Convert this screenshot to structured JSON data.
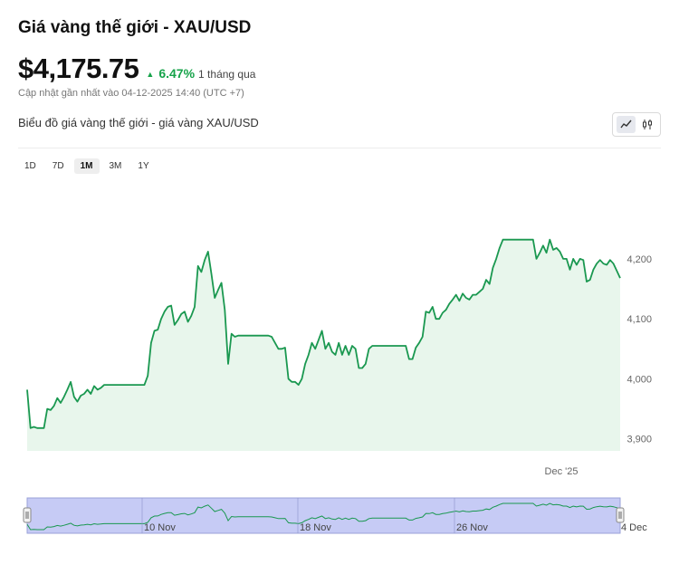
{
  "header": {
    "title": "Giá vàng thế giới - XAU/USD",
    "price": "$4,175.75",
    "change_pct": "6.47%",
    "change_period": "1 tháng qua",
    "updated": "Cập nhật gần nhất vào 04-12-2025 14:40 (UTC +7)",
    "chart_title": "Biểu đồ giá vàng thế giới - giá vàng XAU/USD"
  },
  "colors": {
    "accent": "#16a34a",
    "line": "#1a9850",
    "area": "#e8f6ec",
    "navigator_mask": "#c6cbf5"
  },
  "icons": {
    "line_view": "line-chart-icon",
    "candle_view": "candlestick-icon",
    "trend": "triangle-up-icon"
  },
  "range_buttons": [
    {
      "label": "1D",
      "active": false
    },
    {
      "label": "7D",
      "active": false
    },
    {
      "label": "1M",
      "active": true
    },
    {
      "label": "3M",
      "active": false
    },
    {
      "label": "1Y",
      "active": false
    }
  ],
  "chart_data": {
    "type": "area",
    "unit": "USD/oz",
    "ylim": [
      3880,
      4325
    ],
    "y_ticks": [
      "4,200",
      "4,100",
      "4,000",
      "3,900"
    ],
    "y_tick_values": [
      4200,
      4100,
      4000,
      3900
    ],
    "x_ticks": [
      "Dec '25"
    ],
    "navigator_ticks": [
      "10 Nov",
      "18 Nov",
      "26 Nov",
      "4 Dec"
    ],
    "values": [
      3982,
      3918,
      3920,
      3918,
      3918,
      3918,
      3950,
      3948,
      3955,
      3968,
      3960,
      3970,
      3982,
      3995,
      3970,
      3962,
      3972,
      3975,
      3982,
      3975,
      3988,
      3982,
      3985,
      3990,
      3990,
      3990,
      3990,
      3990,
      3990,
      3990,
      3990,
      3990,
      3990,
      3990,
      3990,
      3990,
      4005,
      4060,
      4080,
      4082,
      4100,
      4112,
      4120,
      4122,
      4090,
      4098,
      4108,
      4112,
      4095,
      4105,
      4120,
      4188,
      4178,
      4198,
      4212,
      4175,
      4135,
      4148,
      4160,
      4115,
      4025,
      4075,
      4070,
      4072,
      4072,
      4072,
      4072,
      4072,
      4072,
      4072,
      4072,
      4072,
      4072,
      4070,
      4060,
      4050,
      4050,
      4052,
      4000,
      3995,
      3995,
      3990,
      4000,
      4025,
      4040,
      4060,
      4050,
      4065,
      4080,
      4050,
      4060,
      4045,
      4040,
      4060,
      4040,
      4055,
      4040,
      4055,
      4050,
      4018,
      4018,
      4025,
      4050,
      4055,
      4055,
      4055,
      4055,
      4055,
      4055,
      4055,
      4055,
      4055,
      4055,
      4055,
      4033,
      4033,
      4052,
      4060,
      4070,
      4112,
      4110,
      4120,
      4100,
      4100,
      4110,
      4115,
      4125,
      4132,
      4140,
      4130,
      4142,
      4135,
      4132,
      4140,
      4140,
      4145,
      4150,
      4165,
      4158,
      4185,
      4200,
      4218,
      4232,
      4232,
      4232,
      4232,
      4232,
      4232,
      4232,
      4232,
      4232,
      4232,
      4200,
      4210,
      4222,
      4210,
      4232,
      4215,
      4218,
      4212,
      4200,
      4200,
      4182,
      4200,
      4190,
      4200,
      4198,
      4162,
      4165,
      4182,
      4192,
      4198,
      4192,
      4190,
      4198,
      4192,
      4180,
      4168
    ]
  }
}
